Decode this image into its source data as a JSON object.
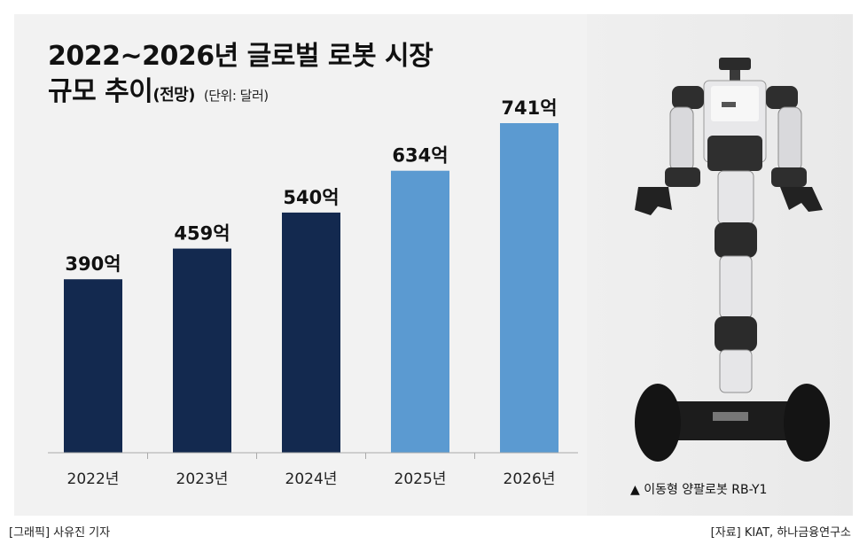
{
  "header": {
    "title_line1": "2022~2026년 글로벌 로봇 시장",
    "title_line2_main": "규모 추이",
    "title_line2_paren": "(전망)",
    "title_unit": "(단위: 달러)"
  },
  "chart_data": {
    "type": "bar",
    "categories": [
      "2022년",
      "2023년",
      "2024년",
      "2025년",
      "2026년"
    ],
    "values": [
      390,
      459,
      540,
      634,
      741
    ],
    "labels": [
      "390억",
      "459억",
      "540억",
      "634억",
      "741억"
    ],
    "forecast": [
      false,
      false,
      false,
      true,
      true
    ],
    "ylim": [
      0,
      741
    ],
    "colors": {
      "actual": "#13294f",
      "forecast": "#5b9ad1",
      "axis": "#aaaaaa"
    }
  },
  "image": {
    "caption": "▲ 이동형 양팔로봇 RB-Y1"
  },
  "footer": {
    "graphic_credit": "[그래픽] 사유진 기자",
    "source": "[자료] KIAT, 하나금융연구소"
  }
}
